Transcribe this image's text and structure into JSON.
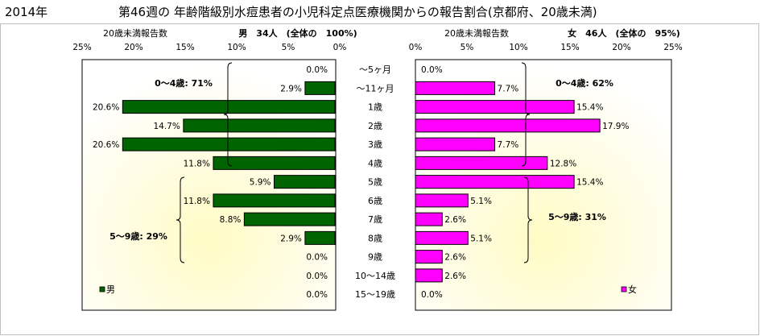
{
  "header": {
    "year": "2014年",
    "title": "第46週の 年齢階級別水痘患者の小児科定点医療機関からの報告割合(京都府、20歳未満)"
  },
  "chart_data": [
    {
      "type": "bar",
      "orientation": "horizontal-left",
      "gender": "男",
      "axis_label": "20歳未満報告数",
      "header": "男　34人　(全体の　100%)",
      "xlim": [
        0,
        25
      ],
      "tick_labels": [
        "25%",
        "20%",
        "15%",
        "10%",
        "5%",
        "0%"
      ],
      "legend": {
        "label": "男",
        "position": "bottom-left"
      },
      "color": "#006400",
      "categories": [
        "～5ヶ月",
        "～11ヶ月",
        "1歳",
        "2歳",
        "3歳",
        "4歳",
        "5歳",
        "6歳",
        "7歳",
        "8歳",
        "9歳",
        "10～14歳",
        "15～19歳"
      ],
      "values": [
        0.0,
        2.9,
        20.6,
        14.7,
        20.6,
        11.8,
        5.9,
        11.8,
        8.8,
        2.9,
        0.0,
        0.0,
        0.0
      ],
      "value_labels": [
        "0.0%",
        "2.9%",
        "20.6%",
        "14.7%",
        "20.6%",
        "11.8%",
        "5.9%",
        "11.8%",
        "8.8%",
        "2.9%",
        "0.0%",
        "0.0%",
        "0.0%"
      ],
      "annotations": [
        {
          "text": "0～4歳: 71%",
          "from_index": 0,
          "to_index": 5
        },
        {
          "text": "5～9歳: 29%",
          "from_index": 6,
          "to_index": 10
        }
      ]
    },
    {
      "type": "bar",
      "orientation": "horizontal-right",
      "gender": "女",
      "axis_label": "20歳未満報告数",
      "header": "女　46人　(全体の　95%)",
      "xlim": [
        0,
        25
      ],
      "tick_labels": [
        "0%",
        "5%",
        "10%",
        "15%",
        "20%",
        "25%"
      ],
      "legend": {
        "label": "女",
        "position": "bottom-right"
      },
      "color": "#ff00ff",
      "categories": [
        "～5ヶ月",
        "～11ヶ月",
        "1歳",
        "2歳",
        "3歳",
        "4歳",
        "5歳",
        "6歳",
        "7歳",
        "8歳",
        "9歳",
        "10～14歳",
        "15～19歳"
      ],
      "values": [
        0.0,
        7.7,
        15.4,
        17.9,
        7.7,
        12.8,
        15.4,
        5.1,
        2.6,
        5.1,
        2.6,
        2.6,
        0.0
      ],
      "value_labels": [
        "0.0%",
        "7.7%",
        "15.4%",
        "17.9%",
        "7.7%",
        "12.8%",
        "15.4%",
        "5.1%",
        "2.6%",
        "5.1%",
        "2.6%",
        "2.6%",
        "0.0%"
      ],
      "annotations": [
        {
          "text": "0～4歳: 62%",
          "from_index": 0,
          "to_index": 5
        },
        {
          "text": "5～9歳: 31%",
          "from_index": 6,
          "to_index": 10
        }
      ]
    }
  ]
}
